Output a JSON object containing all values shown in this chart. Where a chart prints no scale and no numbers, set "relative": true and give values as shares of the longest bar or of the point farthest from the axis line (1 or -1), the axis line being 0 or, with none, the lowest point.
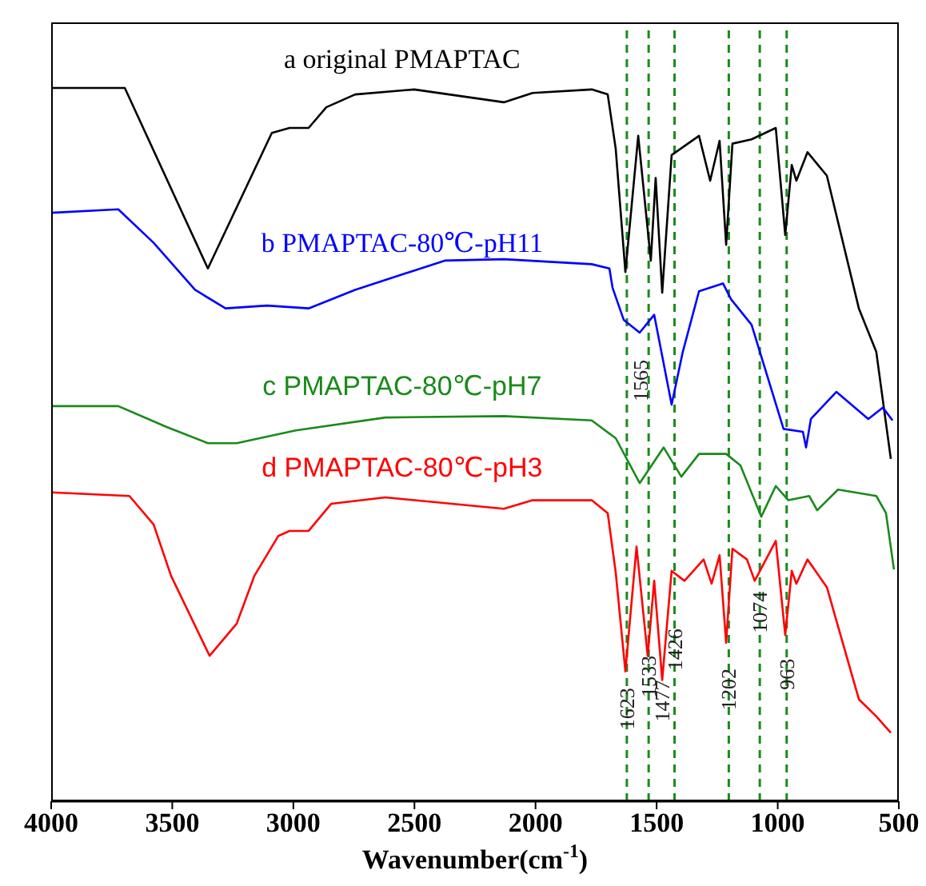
{
  "chart_data": {
    "type": "line",
    "relative": true,
    "xlabel": "Wavenumber(cm$^{-1}$)",
    "xlim": [
      4000,
      500
    ],
    "xticks": [
      4000,
      3500,
      3000,
      2500,
      2000,
      1500,
      1000,
      500
    ],
    "grid": false,
    "legend": false,
    "marker": "none",
    "line_style": "solid",
    "series": [
      {
        "name": "a  original PMAPTAC",
        "color": "#000000",
        "x": [
          4000,
          3696,
          3353,
          3089,
          3016,
          2937,
          2864,
          2745,
          2501,
          2131,
          2012,
          1768,
          1702,
          1669,
          1629,
          1576,
          1524,
          1504,
          1477,
          1438,
          1325,
          1279,
          1240,
          1213,
          1187,
          1108,
          1008,
          969,
          942,
          923,
          877,
          797,
          665,
          593,
          533
        ],
        "values": [
          1.0,
          1.0,
          0.747,
          0.937,
          0.944,
          0.944,
          0.973,
          0.991,
          0.998,
          0.98,
          0.993,
          0.998,
          0.991,
          0.915,
          0.742,
          0.933,
          0.758,
          0.874,
          0.713,
          0.906,
          0.933,
          0.87,
          0.926,
          0.78,
          0.922,
          0.928,
          0.944,
          0.794,
          0.892,
          0.87,
          0.91,
          0.877,
          0.691,
          0.63,
          0.48
        ]
      },
      {
        "name": "b PMAPTAC-80℃-pH11",
        "color": "#0000ff",
        "x": [
          4000,
          3723,
          3577,
          3406,
          3280,
          3109,
          2937,
          2745,
          2375,
          2131,
          1768,
          1695,
          1682,
          1636,
          1570,
          1510,
          1438,
          1392,
          1325,
          1226,
          1193,
          1108,
          976,
          896,
          883,
          863,
          758,
          626,
          566,
          526
        ],
        "values": [
          0.825,
          0.83,
          0.783,
          0.717,
          0.691,
          0.695,
          0.691,
          0.717,
          0.758,
          0.76,
          0.753,
          0.747,
          0.72,
          0.675,
          0.657,
          0.682,
          0.556,
          0.63,
          0.715,
          0.726,
          0.704,
          0.668,
          0.522,
          0.518,
          0.496,
          0.536,
          0.574,
          0.536,
          0.552,
          0.534
        ]
      },
      {
        "name": "c PMAPTAC-80℃-pH7",
        "color": "#1a8a1a",
        "x": [
          4000,
          3723,
          3525,
          3353,
          3234,
          2990,
          2620,
          2131,
          1768,
          1669,
          1570,
          1471,
          1398,
          1325,
          1213,
          1154,
          1068,
          1008,
          956,
          870,
          837,
          751,
          593,
          553,
          520
        ],
        "values": [
          0.554,
          0.554,
          0.525,
          0.502,
          0.502,
          0.52,
          0.538,
          0.54,
          0.534,
          0.509,
          0.446,
          0.496,
          0.455,
          0.487,
          0.487,
          0.471,
          0.399,
          0.442,
          0.422,
          0.428,
          0.408,
          0.437,
          0.428,
          0.404,
          0.325
        ]
      },
      {
        "name": "d PMAPTAC-80℃-pH3",
        "color": "#ff0000",
        "x": [
          4000,
          3677,
          3577,
          3505,
          3346,
          3234,
          3161,
          3062,
          3016,
          2937,
          2844,
          2620,
          2131,
          2012,
          1768,
          1702,
          1669,
          1629,
          1583,
          1537,
          1510,
          1477,
          1438,
          1385,
          1306,
          1273,
          1240,
          1213,
          1187,
          1127,
          1095,
          1008,
          969,
          942,
          923,
          877,
          797,
          665,
          593,
          533
        ],
        "values": [
          0.433,
          0.428,
          0.388,
          0.316,
          0.204,
          0.249,
          0.316,
          0.372,
          0.379,
          0.379,
          0.417,
          0.426,
          0.41,
          0.422,
          0.422,
          0.404,
          0.321,
          0.182,
          0.357,
          0.204,
          0.309,
          0.17,
          0.323,
          0.309,
          0.339,
          0.305,
          0.345,
          0.222,
          0.354,
          0.339,
          0.309,
          0.365,
          0.233,
          0.323,
          0.305,
          0.339,
          0.3,
          0.143,
          0.119,
          0.096
        ]
      }
    ],
    "ref_lines": [
      {
        "axis": "x",
        "value": 1623,
        "color": "#1a8a1a",
        "line_style": "dashed"
      },
      {
        "axis": "x",
        "value": 1533,
        "color": "#1a8a1a",
        "line_style": "dashed"
      },
      {
        "axis": "x",
        "value": 1426,
        "color": "#1a8a1a",
        "line_style": "dashed"
      },
      {
        "axis": "x",
        "value": 1202,
        "color": "#1a8a1a",
        "line_style": "dashed"
      },
      {
        "axis": "x",
        "value": 1074,
        "color": "#1a8a1a",
        "line_style": "dashed"
      },
      {
        "axis": "x",
        "value": 963,
        "color": "#1a8a1a",
        "line_style": "dashed"
      }
    ],
    "annotations": [
      {
        "text": "1565",
        "x": 1565,
        "y": 0.619
      },
      {
        "text": "1623",
        "x": 1623,
        "y": 0.159
      },
      {
        "text": "1533",
        "x": 1533,
        "y": 0.204
      },
      {
        "text": "1477",
        "x": 1477,
        "y": 0.17
      },
      {
        "text": "1426",
        "x": 1426,
        "y": 0.242
      },
      {
        "text": "1202",
        "x": 1202,
        "y": 0.186
      },
      {
        "text": "1074",
        "x": 1074,
        "y": 0.294
      },
      {
        "text": "963",
        "x": 963,
        "y": 0.2
      }
    ]
  }
}
